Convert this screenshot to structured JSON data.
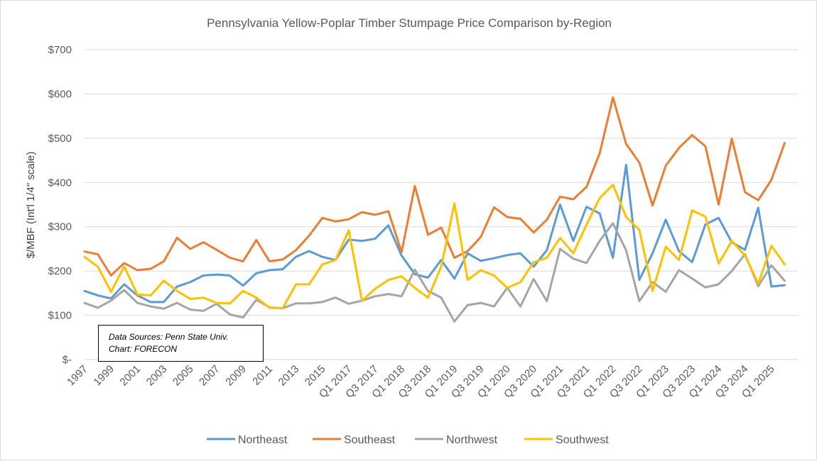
{
  "chart_data": {
    "type": "line",
    "title": "Pennsylvania Yellow-Poplar Timber Stumpage Price Comparison by-Region",
    "ylabel": "$/MBF (Int'l 1/4\" scale)",
    "xlabel": "",
    "ylim": [
      0,
      700
    ],
    "yticks": [
      {
        "value": 700,
        "label": "$700"
      },
      {
        "value": 600,
        "label": "$600"
      },
      {
        "value": 500,
        "label": "$500"
      },
      {
        "value": 400,
        "label": "$400"
      },
      {
        "value": 300,
        "label": "$300"
      },
      {
        "value": 200,
        "label": "$200"
      },
      {
        "value": 100,
        "label": "$100"
      },
      {
        "value": 0,
        "label": "$-"
      }
    ],
    "grid": true,
    "legend_position": "bottom",
    "x": [
      "1997",
      "1998",
      "1999",
      "2000",
      "2001",
      "2002",
      "2003",
      "2004",
      "2005",
      "2006",
      "2007",
      "2008",
      "2009",
      "2010",
      "2011",
      "2012",
      "2013",
      "2014",
      "2015",
      "2016",
      "Q1 2017",
      "Q2 2017",
      "Q3 2017",
      "Q4 2017",
      "Q1 2018",
      "Q2 2018",
      "Q3 2018",
      "Q4 2018",
      "Q1 2019",
      "Q2 2019",
      "Q3 2019",
      "Q4 2019",
      "Q1 2020",
      "Q2 2020",
      "Q3 2020",
      "Q4 2020",
      "Q1 2021",
      "Q2 2021",
      "Q3 2021",
      "Q4 2021",
      "Q1 2022",
      "Q2 2022",
      "Q3 2022",
      "Q4 2022",
      "Q1 2023",
      "Q2 2023",
      "Q3 2023",
      "Q4 2023",
      "Q1 2024",
      "Q2 2024",
      "Q3 2024",
      "Q4 2024",
      "Q1 2025",
      "Q2 2025",
      "Q3 2025"
    ],
    "x_tick_labels": [
      "1997",
      "1999",
      "2001",
      "2003",
      "2005",
      "2007",
      "2009",
      "2011",
      "2013",
      "2015",
      "Q1 2017",
      "Q3 2017",
      "Q1 2018",
      "Q3 2018",
      "Q1 2019",
      "Q3 2019",
      "Q1 2020",
      "Q3 2020",
      "Q1 2021",
      "Q3 2021",
      "Q1 2022",
      "Q3 2022",
      "Q1 2023",
      "Q3 2023",
      "Q1 2024",
      "Q3 2024",
      "Q1 2025"
    ],
    "series": [
      {
        "name": "Northeast",
        "color": "#5b9bd5",
        "values": [
          155,
          145,
          138,
          170,
          145,
          130,
          130,
          165,
          175,
          190,
          192,
          190,
          167,
          195,
          202,
          204,
          232,
          245,
          232,
          225,
          271,
          268,
          273,
          303,
          235,
          193,
          185,
          225,
          183,
          240,
          223,
          229,
          236,
          240,
          210,
          247,
          350,
          268,
          345,
          330,
          230,
          440,
          180,
          240,
          316,
          245,
          220,
          305,
          320,
          265,
          248,
          343,
          165,
          168,
          null
        ]
      },
      {
        "name": "Southeast",
        "color": "#ed7d31",
        "values": [
          244,
          238,
          190,
          218,
          202,
          205,
          222,
          275,
          250,
          265,
          248,
          230,
          222,
          270,
          222,
          226,
          247,
          280,
          320,
          312,
          317,
          333,
          327,
          335,
          243,
          392,
          282,
          298,
          230,
          245,
          277,
          344,
          322,
          318,
          287,
          316,
          368,
          362,
          390,
          466,
          592,
          487,
          445,
          348,
          438,
          478,
          507,
          482,
          350,
          499,
          378,
          360,
          406,
          489,
          null
        ]
      },
      {
        "name": "Northwest",
        "color": "#a5a5a5",
        "values": [
          128,
          117,
          133,
          157,
          128,
          120,
          115,
          128,
          113,
          110,
          126,
          102,
          95,
          135,
          118,
          116,
          127,
          127,
          130,
          140,
          126,
          133,
          143,
          148,
          143,
          203,
          155,
          140,
          86,
          123,
          128,
          120,
          162,
          120,
          182,
          132,
          250,
          228,
          218,
          268,
          308,
          247,
          132,
          175,
          153,
          202,
          183,
          163,
          170,
          200,
          238,
          166,
          213,
          178,
          null
        ]
      },
      {
        "name": "Southwest",
        "color": "#ffc000",
        "values": [
          232,
          210,
          153,
          210,
          147,
          145,
          178,
          155,
          137,
          140,
          128,
          127,
          155,
          140,
          117,
          116,
          170,
          170,
          215,
          225,
          292,
          133,
          160,
          180,
          188,
          162,
          140,
          210,
          353,
          180,
          202,
          190,
          162,
          175,
          220,
          230,
          275,
          240,
          305,
          365,
          395,
          322,
          293,
          155,
          255,
          225,
          337,
          323,
          217,
          268,
          235,
          172,
          257,
          215,
          null
        ]
      }
    ]
  },
  "note": {
    "line1": "Data Sources: Penn State Univ.",
    "line2": "Chart: FORECON"
  }
}
